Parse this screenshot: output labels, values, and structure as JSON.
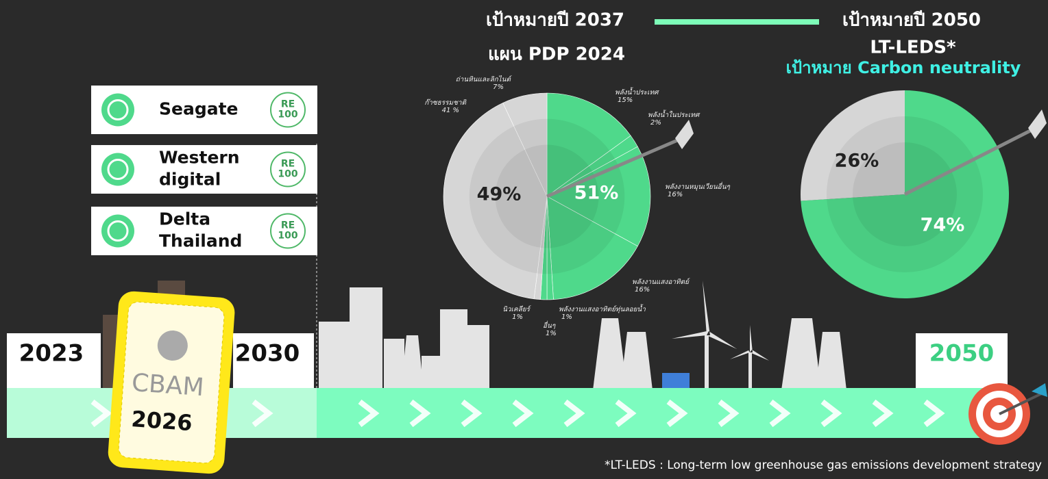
{
  "header": {
    "target_2037": "เป้าหมายปี 2037",
    "plan_2037": "แผน PDP 2024",
    "target_2050": "เป้าหมายปี 2050",
    "plan_2050": "LT-LEDS*",
    "subtitle_2050": "เป้าหมาย Carbon neutrality"
  },
  "companies": [
    {
      "name_lines": [
        "Seagate"
      ],
      "badge": [
        "RE",
        "100"
      ]
    },
    {
      "name_lines": [
        "Western",
        "digital"
      ],
      "badge": [
        "RE",
        "100"
      ]
    },
    {
      "name_lines": [
        "Delta",
        "Thailand"
      ],
      "badge": [
        "RE",
        "100"
      ]
    }
  ],
  "timeline": {
    "years": [
      "2023",
      "2030",
      "2050"
    ],
    "ticket": {
      "label": "CBAM",
      "year": "2026"
    }
  },
  "footnote": "*LT-LEDS : Long-term low greenhouse gas emissions development strategy",
  "chart_data": [
    {
      "type": "pie",
      "categories": [
        "พลังน้ำประเทศ",
        "พลังน้ำในประเทศ",
        "พลังงานหมุนเวียนอื่นๆ",
        "พลังงานแสงอาทิตย์",
        "พลังงานแสงอาทิตย์ทุ่นลอยน้ำ",
        "อื่นๆ",
        "นิวเคลียร์",
        "ก๊าซธรรมชาติ",
        "ถ่านหินและลิกไนต์"
      ],
      "values": [
        15,
        2,
        16,
        16,
        1,
        1,
        1,
        41,
        7
      ],
      "value_labels": [
        "15%",
        "2%",
        "16%",
        "16%",
        "1%",
        "1%",
        "1%",
        "41 %",
        "7%"
      ],
      "colors": [
        "#4fd98b",
        "#4fd98b",
        "#4fd98b",
        "#4fd98b",
        "#4fd98b",
        "#4fd98b",
        "#d6d6d6",
        "#d6d6d6",
        "#d6d6d6"
      ],
      "summary_labels": [
        "49%",
        "51%"
      ]
    },
    {
      "type": "pie",
      "values": [
        74,
        26
      ],
      "value_labels": [
        "74%",
        "26%"
      ],
      "colors": [
        "#4fd98b",
        "#d6d6d6"
      ]
    }
  ]
}
